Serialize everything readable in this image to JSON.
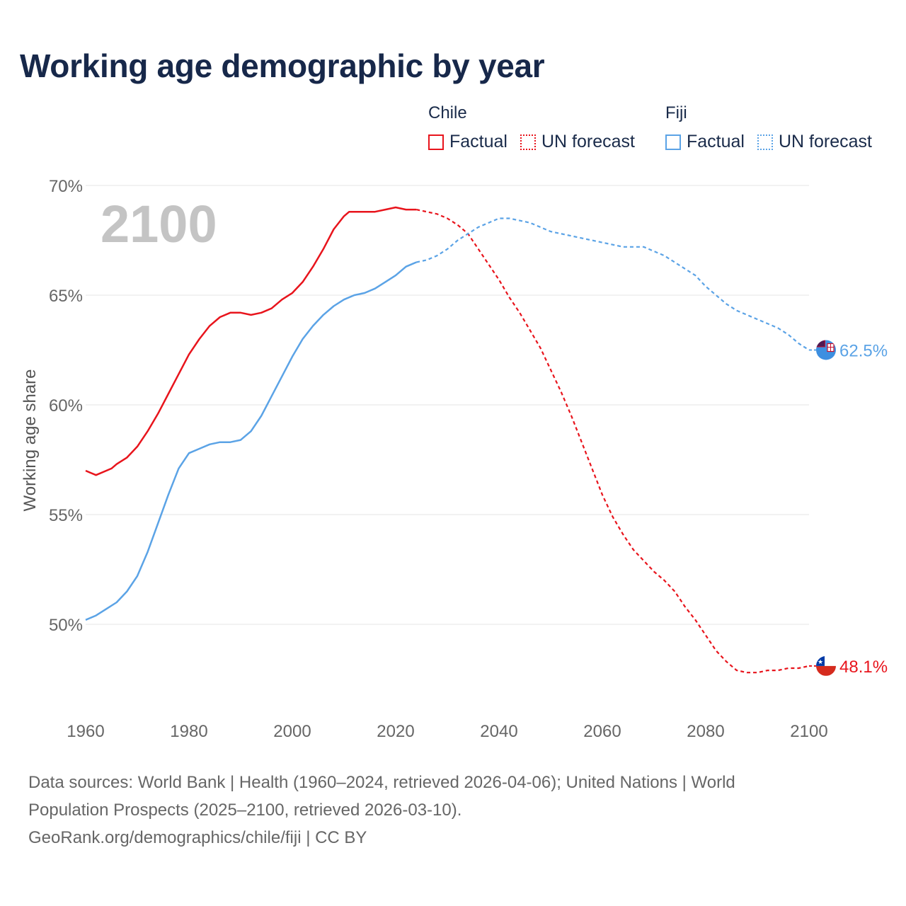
{
  "title": "Working age demographic by year",
  "legend": {
    "groups": [
      {
        "name": "Chile",
        "factual_label": "Factual",
        "forecast_label": "UN forecast",
        "color": "#e8141c"
      },
      {
        "name": "Fiji",
        "factual_label": "Factual",
        "forecast_label": "UN forecast",
        "color": "#5ba3e6"
      }
    ]
  },
  "year_watermark": "2100",
  "footer": {
    "line1": "Data sources: World Bank | Health (1960–2024, retrieved 2026-04-06); United Nations | World",
    "line2": "Population Prospects (2025–2100, retrieved 2026-03-10).",
    "line3": "GeoRank.org/demographics/chile/fiji | CC BY"
  },
  "chart_data": {
    "type": "line",
    "title": "Working age demographic by year",
    "xlabel": "",
    "ylabel": "Working age share",
    "xlim": [
      1960,
      2100
    ],
    "ylim": [
      46.5,
      71
    ],
    "x_ticks": [
      1960,
      1980,
      2000,
      2020,
      2040,
      2060,
      2080,
      2100
    ],
    "x_tick_labels": [
      "1960",
      "1980",
      "2000",
      "2020",
      "2040",
      "2060",
      "2080",
      "2100"
    ],
    "y_ticks": [
      50,
      55,
      60,
      65,
      70
    ],
    "y_tick_labels": [
      "50%",
      "55%",
      "60%",
      "65%",
      "70%"
    ],
    "grid": true,
    "factual_end_year": 2024,
    "series": [
      {
        "name": "Chile",
        "color": "#e8141c",
        "end_label": "48.1%",
        "end_flag": "chile-flag",
        "points": [
          [
            1960,
            57.0
          ],
          [
            1962,
            56.8
          ],
          [
            1965,
            57.1
          ],
          [
            1966,
            57.3
          ],
          [
            1968,
            57.6
          ],
          [
            1970,
            58.1
          ],
          [
            1972,
            58.8
          ],
          [
            1974,
            59.6
          ],
          [
            1976,
            60.5
          ],
          [
            1978,
            61.4
          ],
          [
            1980,
            62.3
          ],
          [
            1982,
            63.0
          ],
          [
            1984,
            63.6
          ],
          [
            1986,
            64.0
          ],
          [
            1988,
            64.2
          ],
          [
            1990,
            64.2
          ],
          [
            1992,
            64.1
          ],
          [
            1994,
            64.2
          ],
          [
            1996,
            64.4
          ],
          [
            1998,
            64.8
          ],
          [
            2000,
            65.1
          ],
          [
            2002,
            65.6
          ],
          [
            2004,
            66.3
          ],
          [
            2006,
            67.1
          ],
          [
            2008,
            68.0
          ],
          [
            2010,
            68.6
          ],
          [
            2011,
            68.8
          ],
          [
            2013,
            68.8
          ],
          [
            2016,
            68.8
          ],
          [
            2018,
            68.9
          ],
          [
            2020,
            69.0
          ],
          [
            2022,
            68.9
          ],
          [
            2024,
            68.9
          ],
          [
            2026,
            68.8
          ],
          [
            2028,
            68.7
          ],
          [
            2030,
            68.5
          ],
          [
            2032,
            68.2
          ],
          [
            2034,
            67.8
          ],
          [
            2036,
            67.1
          ],
          [
            2038,
            66.4
          ],
          [
            2040,
            65.7
          ],
          [
            2042,
            64.9
          ],
          [
            2044,
            64.2
          ],
          [
            2046,
            63.4
          ],
          [
            2048,
            62.6
          ],
          [
            2050,
            61.6
          ],
          [
            2052,
            60.6
          ],
          [
            2054,
            59.5
          ],
          [
            2056,
            58.3
          ],
          [
            2058,
            57.1
          ],
          [
            2060,
            55.9
          ],
          [
            2062,
            54.9
          ],
          [
            2064,
            54.1
          ],
          [
            2066,
            53.4
          ],
          [
            2068,
            52.9
          ],
          [
            2070,
            52.4
          ],
          [
            2072,
            52.0
          ],
          [
            2074,
            51.5
          ],
          [
            2076,
            50.8
          ],
          [
            2078,
            50.2
          ],
          [
            2080,
            49.5
          ],
          [
            2082,
            48.8
          ],
          [
            2084,
            48.3
          ],
          [
            2086,
            47.9
          ],
          [
            2088,
            47.8
          ],
          [
            2090,
            47.8
          ],
          [
            2092,
            47.9
          ],
          [
            2094,
            47.9
          ],
          [
            2096,
            48.0
          ],
          [
            2098,
            48.0
          ],
          [
            2100,
            48.1
          ]
        ]
      },
      {
        "name": "Fiji",
        "color": "#5ba3e6",
        "end_label": "62.5%",
        "end_flag": "fiji-flag",
        "points": [
          [
            1960,
            50.2
          ],
          [
            1962,
            50.4
          ],
          [
            1964,
            50.7
          ],
          [
            1966,
            51.0
          ],
          [
            1968,
            51.5
          ],
          [
            1970,
            52.2
          ],
          [
            1972,
            53.3
          ],
          [
            1974,
            54.6
          ],
          [
            1976,
            55.9
          ],
          [
            1978,
            57.1
          ],
          [
            1980,
            57.8
          ],
          [
            1982,
            58.0
          ],
          [
            1984,
            58.2
          ],
          [
            1986,
            58.3
          ],
          [
            1988,
            58.3
          ],
          [
            1990,
            58.4
          ],
          [
            1992,
            58.8
          ],
          [
            1994,
            59.5
          ],
          [
            1996,
            60.4
          ],
          [
            1998,
            61.3
          ],
          [
            2000,
            62.2
          ],
          [
            2002,
            63.0
          ],
          [
            2004,
            63.6
          ],
          [
            2006,
            64.1
          ],
          [
            2008,
            64.5
          ],
          [
            2010,
            64.8
          ],
          [
            2012,
            65.0
          ],
          [
            2014,
            65.1
          ],
          [
            2016,
            65.3
          ],
          [
            2018,
            65.6
          ],
          [
            2020,
            65.9
          ],
          [
            2022,
            66.3
          ],
          [
            2024,
            66.5
          ],
          [
            2026,
            66.6
          ],
          [
            2028,
            66.8
          ],
          [
            2030,
            67.1
          ],
          [
            2032,
            67.5
          ],
          [
            2034,
            67.8
          ],
          [
            2036,
            68.1
          ],
          [
            2038,
            68.3
          ],
          [
            2040,
            68.5
          ],
          [
            2042,
            68.5
          ],
          [
            2044,
            68.4
          ],
          [
            2046,
            68.3
          ],
          [
            2048,
            68.1
          ],
          [
            2050,
            67.9
          ],
          [
            2052,
            67.8
          ],
          [
            2054,
            67.7
          ],
          [
            2056,
            67.6
          ],
          [
            2058,
            67.5
          ],
          [
            2060,
            67.4
          ],
          [
            2062,
            67.3
          ],
          [
            2064,
            67.2
          ],
          [
            2066,
            67.2
          ],
          [
            2068,
            67.2
          ],
          [
            2070,
            67.0
          ],
          [
            2072,
            66.8
          ],
          [
            2074,
            66.5
          ],
          [
            2076,
            66.2
          ],
          [
            2078,
            65.9
          ],
          [
            2080,
            65.4
          ],
          [
            2082,
            65.0
          ],
          [
            2084,
            64.6
          ],
          [
            2086,
            64.3
          ],
          [
            2088,
            64.1
          ],
          [
            2090,
            63.9
          ],
          [
            2092,
            63.7
          ],
          [
            2094,
            63.5
          ],
          [
            2096,
            63.2
          ],
          [
            2098,
            62.8
          ],
          [
            2100,
            62.5
          ]
        ]
      }
    ]
  }
}
